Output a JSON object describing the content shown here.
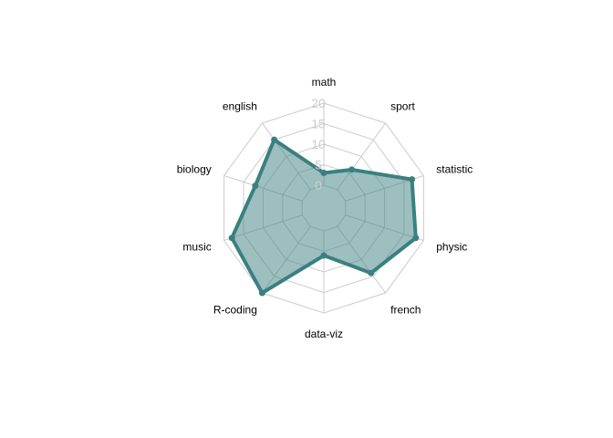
{
  "chart_data": {
    "type": "radar",
    "categories": [
      "math",
      "sport",
      "statistic",
      "physic",
      "french",
      "data-viz",
      "R-coding",
      "music",
      "biology",
      "english"
    ],
    "series": [
      {
        "values": [
          3,
          6,
          17,
          18,
          14,
          6,
          20,
          18,
          12,
          15
        ]
      }
    ],
    "rlim": [
      0,
      20
    ],
    "ticks": [
      "0",
      "5",
      "10",
      "15",
      "20"
    ],
    "grid": true,
    "colors": {
      "line": "#3b8081",
      "fill": "#3b8081",
      "grid": "#cccccc",
      "tick_text": "#cccccc"
    }
  }
}
